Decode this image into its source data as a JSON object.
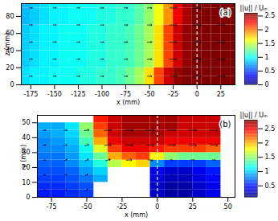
{
  "chart_data": [
    {
      "type": "heatmap",
      "title": "(a)",
      "xlabel": "x (mm)",
      "ylabel": "z (mm)",
      "xlim": [
        -185,
        40
      ],
      "xticks": [
        -175,
        -150,
        -125,
        -100,
        -75,
        -50,
        -25,
        0,
        25
      ],
      "ylim": [
        0,
        95
      ],
      "yticks": [
        0,
        20,
        40,
        60,
        80
      ],
      "reference_x": 0,
      "heatmap": {
        "x_edges": [
          -185,
          -175,
          -165,
          -155,
          -145,
          -135,
          -125,
          -115,
          -105,
          -95,
          -85,
          -75,
          -65,
          -55,
          -45,
          -35,
          -25,
          -15,
          -5,
          5,
          15,
          25,
          35,
          45
        ],
        "y_edges": [
          0,
          10,
          20,
          30,
          40,
          50,
          60,
          70,
          80,
          90,
          100
        ],
        "values": [
          [
            0.9,
            0.95,
            0.95,
            1.0,
            1.0,
            1.0,
            1.05,
            1.05,
            1.1,
            1.1,
            1.15,
            1.25,
            1.4,
            1.7,
            2.1,
            2.4,
            2.55,
            2.6,
            2.6,
            2.6,
            2.6,
            2.6,
            2.6
          ],
          [
            0.9,
            0.95,
            0.95,
            1.0,
            1.0,
            1.0,
            1.05,
            1.05,
            1.1,
            1.1,
            1.15,
            1.25,
            1.4,
            1.7,
            2.1,
            2.4,
            2.55,
            2.6,
            2.6,
            2.6,
            2.6,
            2.6,
            2.6
          ],
          [
            0.85,
            0.9,
            0.95,
            0.95,
            1.0,
            1.0,
            1.0,
            1.05,
            1.05,
            1.1,
            1.1,
            1.15,
            1.25,
            1.4,
            1.7,
            2.1,
            2.4,
            2.55,
            2.6,
            2.6,
            2.6,
            2.6,
            2.6
          ],
          [
            0.85,
            0.9,
            0.95,
            0.95,
            1.0,
            1.0,
            1.0,
            1.05,
            1.05,
            1.1,
            1.1,
            1.15,
            1.25,
            1.4,
            1.7,
            2.1,
            2.4,
            2.55,
            2.6,
            2.6,
            2.6,
            2.6,
            2.6
          ],
          [
            0.85,
            0.9,
            0.95,
            0.95,
            1.0,
            1.0,
            1.0,
            1.05,
            1.05,
            1.1,
            1.1,
            1.15,
            1.25,
            1.4,
            1.7,
            2.1,
            2.4,
            2.55,
            2.6,
            2.6,
            2.6,
            2.6,
            2.6
          ],
          [
            0.85,
            0.9,
            0.95,
            0.95,
            1.0,
            1.0,
            1.0,
            1.05,
            1.05,
            1.1,
            1.1,
            1.15,
            1.25,
            1.4,
            1.7,
            2.1,
            2.4,
            2.55,
            2.6,
            2.6,
            2.6,
            2.6,
            2.6
          ],
          [
            0.85,
            0.9,
            0.95,
            0.95,
            1.0,
            1.0,
            1.0,
            1.05,
            1.05,
            1.1,
            1.1,
            1.15,
            1.25,
            1.4,
            1.7,
            2.1,
            2.4,
            2.55,
            2.6,
            2.6,
            2.6,
            2.6,
            2.6
          ],
          [
            0.8,
            0.85,
            0.9,
            0.95,
            0.95,
            1.0,
            1.0,
            1.0,
            1.05,
            1.05,
            1.1,
            1.1,
            1.2,
            1.35,
            1.6,
            1.9,
            2.3,
            2.5,
            2.6,
            2.6,
            2.6,
            2.6,
            2.6
          ],
          [
            0.8,
            0.85,
            0.9,
            0.95,
            0.95,
            1.0,
            1.0,
            1.0,
            1.05,
            1.05,
            1.1,
            1.1,
            1.2,
            1.35,
            1.6,
            1.9,
            2.3,
            2.5,
            2.6,
            2.6,
            2.6,
            2.6,
            2.6
          ],
          [
            0.8,
            0.85,
            0.9,
            0.95,
            0.95,
            1.0,
            1.0,
            1.0,
            1.05,
            1.05,
            1.1,
            1.1,
            1.2,
            1.35,
            1.6,
            1.9,
            2.3,
            2.5,
            2.6,
            2.6,
            2.6,
            2.6,
            2.6
          ]
        ]
      },
      "colorbar": {
        "label": "||u|| / Uᵢₙ",
        "range": [
          0,
          2.6
        ],
        "ticks": [
          0,
          0.5,
          1,
          1.5,
          2,
          2.5
        ]
      },
      "vectors": {
        "x": [
          -175,
          -150,
          -125,
          -100,
          -75,
          -50,
          -25,
          0,
          25
        ],
        "y": [
          10,
          30,
          50,
          70,
          90
        ],
        "u": [
          [
            0.95,
            1.0,
            1.0,
            1.05,
            1.1,
            1.4,
            2.3,
            2.6,
            2.6
          ],
          [
            0.95,
            1.0,
            1.0,
            1.05,
            1.1,
            1.4,
            2.3,
            2.6,
            2.6
          ],
          [
            0.95,
            1.0,
            1.0,
            1.05,
            1.1,
            1.4,
            2.3,
            2.6,
            2.6
          ],
          [
            0.95,
            1.0,
            1.0,
            1.05,
            1.1,
            1.4,
            2.3,
            2.6,
            2.6
          ],
          [
            0.95,
            1.0,
            1.0,
            1.05,
            1.1,
            1.4,
            2.3,
            2.6,
            2.6
          ]
        ],
        "v": [
          [
            0,
            0,
            0,
            0,
            0,
            0,
            0,
            0,
            0
          ],
          [
            0,
            0,
            0,
            0,
            0,
            0,
            0,
            0,
            0
          ],
          [
            0,
            0,
            0,
            0,
            0,
            0,
            0,
            0,
            0
          ],
          [
            0,
            0,
            0,
            0,
            0,
            0,
            0,
            0,
            0
          ],
          [
            0,
            0,
            0,
            0,
            0,
            0,
            0,
            0,
            0
          ]
        ]
      }
    },
    {
      "type": "heatmap",
      "title": "(b)",
      "xlabel": "x (mm)",
      "ylabel": "y (mm)",
      "xlim": [
        -85,
        55
      ],
      "xticks": [
        -75,
        -50,
        -25,
        0,
        25,
        50
      ],
      "ylim": [
        0,
        55
      ],
      "yticks": [
        0,
        10,
        20,
        30,
        40,
        50
      ],
      "reference_x": 0,
      "heatmap": {
        "x_edges": [
          -85,
          -75,
          -65,
          -55,
          -45,
          -35,
          -25,
          -15,
          -5,
          5,
          15,
          25,
          35,
          45
        ],
        "y_edges": [
          0,
          5,
          10,
          15,
          20,
          25,
          30,
          35,
          40,
          45,
          50,
          55
        ],
        "values": [
          [
            0.5,
            0.5,
            0.55,
            0.6,
            null,
            null,
            null,
            null,
            0.3,
            0.2,
            0.2,
            0.3,
            0.4
          ],
          [
            0.55,
            0.55,
            0.6,
            0.65,
            null,
            null,
            null,
            null,
            0.3,
            0.2,
            0.2,
            0.3,
            0.4
          ],
          [
            0.6,
            0.6,
            0.65,
            0.75,
            0.9,
            null,
            null,
            null,
            0.35,
            0.25,
            0.25,
            0.35,
            0.45
          ],
          [
            0.65,
            0.65,
            0.7,
            0.85,
            1.0,
            null,
            null,
            null,
            0.4,
            0.3,
            0.3,
            0.4,
            0.5
          ],
          [
            0.7,
            0.7,
            0.8,
            0.95,
            1.2,
            1.6,
            1.8,
            1.9,
            0.8,
            0.6,
            0.6,
            0.6,
            0.7
          ],
          [
            0.75,
            0.75,
            0.85,
            1.05,
            1.4,
            2.0,
            2.2,
            2.3,
            1.8,
            1.5,
            1.4,
            1.4,
            1.4
          ],
          [
            0.8,
            0.8,
            0.9,
            1.15,
            1.7,
            2.3,
            2.5,
            2.5,
            2.4,
            2.3,
            2.3,
            2.3,
            2.2
          ],
          [
            0.8,
            0.85,
            0.95,
            1.3,
            2.0,
            2.5,
            2.6,
            2.6,
            2.6,
            2.5,
            2.5,
            2.5,
            2.5
          ],
          [
            0.85,
            0.9,
            1.0,
            1.4,
            2.2,
            2.6,
            2.7,
            2.7,
            2.7,
            2.6,
            2.6,
            2.6,
            2.6
          ],
          [
            0.9,
            0.9,
            1.05,
            1.5,
            2.3,
            2.6,
            2.7,
            2.7,
            2.7,
            2.7,
            2.6,
            2.6,
            2.6
          ],
          [
            null,
            null,
            null,
            null,
            2.4,
            2.6,
            2.7,
            2.7,
            2.7,
            2.7,
            2.6,
            2.6,
            2.6
          ]
        ]
      },
      "colorbar": {
        "label": "||u|| / Uᵢₙ",
        "range": [
          0.1,
          2.8
        ],
        "ticks": [
          0.5,
          1,
          1.5,
          2,
          2.5
        ]
      },
      "vectors": {
        "x": [
          -80,
          -65,
          -50,
          -35,
          -20,
          -5,
          10,
          25,
          40
        ],
        "y": [
          5,
          15,
          25,
          35,
          45
        ],
        "u": [
          [
            0.5,
            0.55,
            0.6,
            null,
            null,
            null,
            -0.2,
            -0.2,
            -0.3
          ],
          [
            0.6,
            0.65,
            0.8,
            null,
            null,
            null,
            -0.25,
            -0.25,
            -0.3
          ],
          [
            0.7,
            0.8,
            1.0,
            1.5,
            1.8,
            1.6,
            0.6,
            0.9,
            1.0
          ],
          [
            0.8,
            0.9,
            1.2,
            2.2,
            2.6,
            2.6,
            2.5,
            2.5,
            2.5
          ],
          [
            0.85,
            0.95,
            1.4,
            2.4,
            2.7,
            2.7,
            2.6,
            2.6,
            2.6
          ]
        ],
        "v": [
          [
            0,
            0.1,
            0.3,
            null,
            null,
            null,
            0,
            0,
            0
          ],
          [
            0.05,
            0.15,
            0.4,
            null,
            null,
            null,
            0,
            0,
            0.05
          ],
          [
            0.05,
            0.2,
            0.5,
            0.4,
            0.1,
            -0.2,
            -0.2,
            -0.1,
            0
          ],
          [
            0.05,
            0.1,
            0.3,
            0.3,
            0,
            0,
            0,
            0,
            0
          ],
          [
            0,
            0.05,
            0.2,
            0.2,
            0,
            0,
            0,
            0,
            0
          ]
        ]
      }
    }
  ]
}
